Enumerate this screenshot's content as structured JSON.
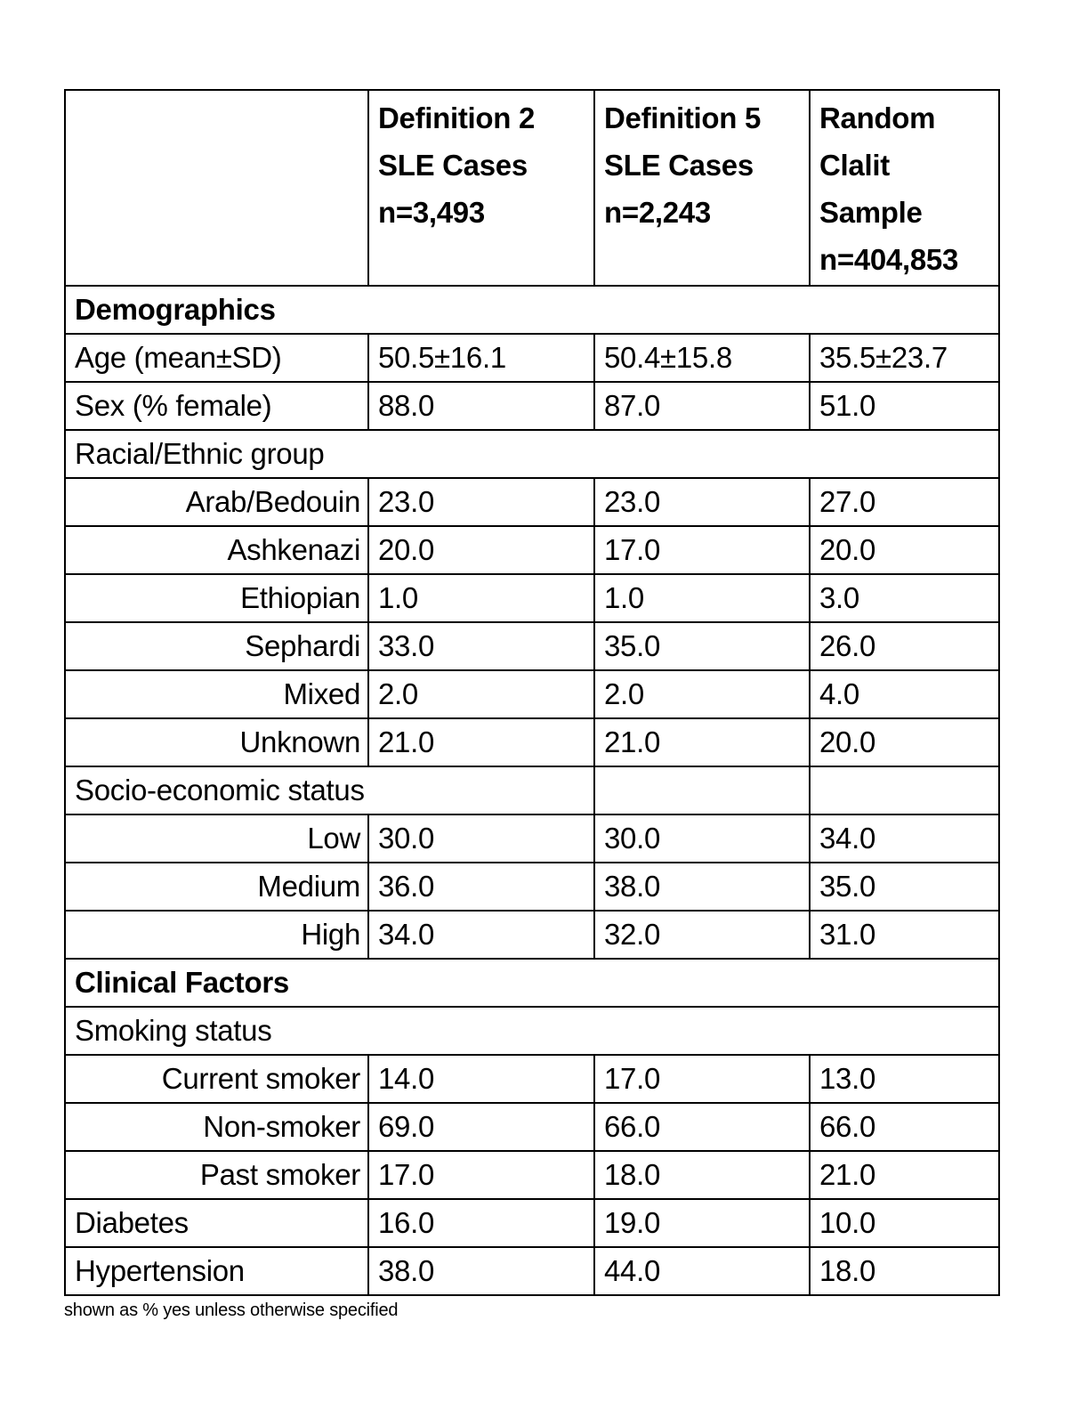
{
  "table": {
    "headers": [
      "",
      "Definition 2\nSLE Cases\nn=3,493",
      "Definition 5\nSLE Cases\nn=2,243",
      "Random\nClalit\nSample\nn=404,853"
    ],
    "rows": [
      {
        "type": "section-bold",
        "span": "full",
        "label": "Demographics"
      },
      {
        "type": "data",
        "align": "left",
        "label": "Age (mean±SD)",
        "values": [
          "50.5±16.1",
          "50.4±15.8",
          "35.5±23.7"
        ]
      },
      {
        "type": "data",
        "align": "left",
        "label": "Sex (% female)",
        "values": [
          "88.0",
          "87.0",
          "51.0"
        ]
      },
      {
        "type": "section",
        "span": "full",
        "label": "Racial/Ethnic group"
      },
      {
        "type": "data",
        "align": "right",
        "label": "Arab/Bedouin",
        "values": [
          "23.0",
          "23.0",
          "27.0"
        ]
      },
      {
        "type": "data",
        "align": "right",
        "label": "Ashkenazi",
        "values": [
          "20.0",
          "17.0",
          "20.0"
        ]
      },
      {
        "type": "data",
        "align": "right",
        "label": "Ethiopian",
        "values": [
          "1.0",
          "1.0",
          "3.0"
        ]
      },
      {
        "type": "data",
        "align": "right",
        "label": "Sephardi",
        "values": [
          "33.0",
          "35.0",
          "26.0"
        ]
      },
      {
        "type": "data",
        "align": "right",
        "label": "Mixed",
        "values": [
          "2.0",
          "2.0",
          "4.0"
        ]
      },
      {
        "type": "data",
        "align": "right",
        "label": "Unknown",
        "values": [
          "21.0",
          "21.0",
          "20.0"
        ]
      },
      {
        "type": "section",
        "span": "half",
        "label": "Socio-economic status"
      },
      {
        "type": "data",
        "align": "right",
        "label": "Low",
        "values": [
          "30.0",
          "30.0",
          "34.0"
        ]
      },
      {
        "type": "data",
        "align": "right",
        "label": "Medium",
        "values": [
          "36.0",
          "38.0",
          "35.0"
        ]
      },
      {
        "type": "data",
        "align": "right",
        "label": "High",
        "values": [
          "34.0",
          "32.0",
          "31.0"
        ]
      },
      {
        "type": "section-bold",
        "span": "full",
        "label": "Clinical Factors"
      },
      {
        "type": "section",
        "span": "full",
        "label": "Smoking status"
      },
      {
        "type": "data",
        "align": "right",
        "label": "Current smoker",
        "values": [
          "14.0",
          "17.0",
          "13.0"
        ]
      },
      {
        "type": "data",
        "align": "right",
        "label": "Non-smoker",
        "values": [
          "69.0",
          "66.0",
          "66.0"
        ]
      },
      {
        "type": "data",
        "align": "right",
        "label": "Past smoker",
        "values": [
          "17.0",
          "18.0",
          "21.0"
        ]
      },
      {
        "type": "data",
        "align": "left",
        "label": "Diabetes",
        "values": [
          "16.0",
          "19.0",
          "10.0"
        ]
      },
      {
        "type": "data",
        "align": "left",
        "label": "Hypertension",
        "values": [
          "38.0",
          "44.0",
          "18.0"
        ]
      }
    ],
    "footnote": "shown as % yes unless otherwise specified"
  }
}
